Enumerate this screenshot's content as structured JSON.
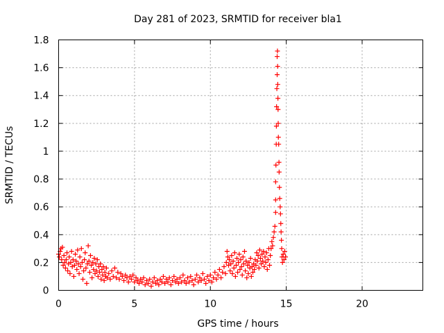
{
  "chart_data": {
    "type": "scatter",
    "title": "Day 281 of 2023, SRMTID for receiver bla1",
    "xlabel": "GPS time / hours",
    "ylabel": "SRMTID / TECUs",
    "xlim": [
      0,
      24
    ],
    "ylim": [
      0,
      1.8
    ],
    "xticks": [
      0,
      5,
      10,
      15,
      20
    ],
    "yticks": [
      0,
      0.2,
      0.4,
      0.6,
      0.8,
      1,
      1.2,
      1.4,
      1.6,
      1.8
    ],
    "xtick_labels": [
      "0",
      "5",
      "10",
      "15",
      "20"
    ],
    "ytick_labels": [
      "0",
      "0.2",
      "0.4",
      "0.6",
      "0.8",
      "1",
      "1.2",
      "1.4",
      "1.6",
      "1.8"
    ],
    "grid": true,
    "marker": "plus",
    "color": "#ff0000",
    "series": [
      {
        "name": "SRMTID",
        "points": [
          [
            0.0,
            0.26
          ],
          [
            0.05,
            0.24
          ],
          [
            0.1,
            0.28
          ],
          [
            0.15,
            0.3
          ],
          [
            0.2,
            0.22
          ],
          [
            0.25,
            0.31
          ],
          [
            0.3,
            0.18
          ],
          [
            0.35,
            0.25
          ],
          [
            0.4,
            0.2
          ],
          [
            0.45,
            0.16
          ],
          [
            0.5,
            0.22
          ],
          [
            0.55,
            0.27
          ],
          [
            0.6,
            0.14
          ],
          [
            0.65,
            0.19
          ],
          [
            0.7,
            0.24
          ],
          [
            0.75,
            0.12
          ],
          [
            0.8,
            0.2
          ],
          [
            0.85,
            0.28
          ],
          [
            0.9,
            0.17
          ],
          [
            0.95,
            0.22
          ],
          [
            1.0,
            0.1
          ],
          [
            1.05,
            0.18
          ],
          [
            1.1,
            0.26
          ],
          [
            1.15,
            0.21
          ],
          [
            1.2,
            0.15
          ],
          [
            1.25,
            0.29
          ],
          [
            1.3,
            0.19
          ],
          [
            1.35,
            0.12
          ],
          [
            1.4,
            0.24
          ],
          [
            1.45,
            0.17
          ],
          [
            1.5,
            0.3
          ],
          [
            1.55,
            0.2
          ],
          [
            1.6,
            0.08
          ],
          [
            1.65,
            0.14
          ],
          [
            1.7,
            0.22
          ],
          [
            1.75,
            0.27
          ],
          [
            1.8,
            0.16
          ],
          [
            1.85,
            0.05
          ],
          [
            1.9,
            0.19
          ],
          [
            1.95,
            0.32
          ],
          [
            2.0,
            0.21
          ],
          [
            2.05,
            0.13
          ],
          [
            2.1,
            0.25
          ],
          [
            2.15,
            0.18
          ],
          [
            2.2,
            0.09
          ],
          [
            2.25,
            0.2
          ],
          [
            2.3,
            0.15
          ],
          [
            2.35,
            0.23
          ],
          [
            2.4,
            0.12
          ],
          [
            2.45,
            0.19
          ],
          [
            2.5,
            0.14
          ],
          [
            2.55,
            0.22
          ],
          [
            2.6,
            0.1
          ],
          [
            2.65,
            0.17
          ],
          [
            2.7,
            0.13
          ],
          [
            2.75,
            0.19
          ],
          [
            2.8,
            0.08
          ],
          [
            2.85,
            0.15
          ],
          [
            2.9,
            0.11
          ],
          [
            2.95,
            0.17
          ],
          [
            3.0,
            0.07
          ],
          [
            3.05,
            0.13
          ],
          [
            3.1,
            0.1
          ],
          [
            3.15,
            0.16
          ],
          [
            3.2,
            0.09
          ],
          [
            3.3,
            0.12
          ],
          [
            3.4,
            0.08
          ],
          [
            3.5,
            0.14
          ],
          [
            3.6,
            0.1
          ],
          [
            3.7,
            0.16
          ],
          [
            3.8,
            0.09
          ],
          [
            3.9,
            0.13
          ],
          [
            4.0,
            0.08
          ],
          [
            4.1,
            0.12
          ],
          [
            4.2,
            0.1
          ],
          [
            4.3,
            0.07
          ],
          [
            4.4,
            0.11
          ],
          [
            4.5,
            0.09
          ],
          [
            4.6,
            0.06
          ],
          [
            4.7,
            0.1
          ],
          [
            4.8,
            0.08
          ],
          [
            4.9,
            0.11
          ],
          [
            5.0,
            0.06
          ],
          [
            5.1,
            0.09
          ],
          [
            5.2,
            0.07
          ],
          [
            5.3,
            0.05
          ],
          [
            5.4,
            0.08
          ],
          [
            5.5,
            0.06
          ],
          [
            5.6,
            0.09
          ],
          [
            5.7,
            0.04
          ],
          [
            5.8,
            0.07
          ],
          [
            5.9,
            0.05
          ],
          [
            6.0,
            0.08
          ],
          [
            6.1,
            0.03
          ],
          [
            6.2,
            0.06
          ],
          [
            6.3,
            0.09
          ],
          [
            6.4,
            0.05
          ],
          [
            6.5,
            0.07
          ],
          [
            6.6,
            0.04
          ],
          [
            6.7,
            0.08
          ],
          [
            6.8,
            0.06
          ],
          [
            6.9,
            0.1
          ],
          [
            7.0,
            0.05
          ],
          [
            7.1,
            0.08
          ],
          [
            7.2,
            0.06
          ],
          [
            7.3,
            0.09
          ],
          [
            7.4,
            0.04
          ],
          [
            7.5,
            0.07
          ],
          [
            7.6,
            0.1
          ],
          [
            7.7,
            0.06
          ],
          [
            7.8,
            0.08
          ],
          [
            7.9,
            0.05
          ],
          [
            8.0,
            0.09
          ],
          [
            8.1,
            0.06
          ],
          [
            8.2,
            0.11
          ],
          [
            8.3,
            0.07
          ],
          [
            8.4,
            0.05
          ],
          [
            8.5,
            0.09
          ],
          [
            8.6,
            0.06
          ],
          [
            8.7,
            0.1
          ],
          [
            8.8,
            0.07
          ],
          [
            8.9,
            0.04
          ],
          [
            9.0,
            0.08
          ],
          [
            9.1,
            0.11
          ],
          [
            9.2,
            0.06
          ],
          [
            9.3,
            0.09
          ],
          [
            9.4,
            0.07
          ],
          [
            9.5,
            0.12
          ],
          [
            9.6,
            0.08
          ],
          [
            9.7,
            0.05
          ],
          [
            9.8,
            0.1
          ],
          [
            9.9,
            0.07
          ],
          [
            10.0,
            0.11
          ],
          [
            10.1,
            0.06
          ],
          [
            10.2,
            0.09
          ],
          [
            10.3,
            0.13
          ],
          [
            10.4,
            0.08
          ],
          [
            10.5,
            0.11
          ],
          [
            10.6,
            0.15
          ],
          [
            10.7,
            0.09
          ],
          [
            10.8,
            0.13
          ],
          [
            10.9,
            0.17
          ],
          [
            11.0,
            0.12
          ],
          [
            11.05,
            0.2
          ],
          [
            11.1,
            0.28
          ],
          [
            11.15,
            0.24
          ],
          [
            11.2,
            0.18
          ],
          [
            11.25,
            0.22
          ],
          [
            11.3,
            0.14
          ],
          [
            11.35,
            0.19
          ],
          [
            11.4,
            0.25
          ],
          [
            11.45,
            0.12
          ],
          [
            11.5,
            0.21
          ],
          [
            11.55,
            0.16
          ],
          [
            11.6,
            0.27
          ],
          [
            11.65,
            0.1
          ],
          [
            11.7,
            0.18
          ],
          [
            11.75,
            0.23
          ],
          [
            11.8,
            0.13
          ],
          [
            11.85,
            0.2
          ],
          [
            11.9,
            0.26
          ],
          [
            11.95,
            0.15
          ],
          [
            12.0,
            0.22
          ],
          [
            12.05,
            0.17
          ],
          [
            12.1,
            0.11
          ],
          [
            12.15,
            0.24
          ],
          [
            12.2,
            0.19
          ],
          [
            12.25,
            0.28
          ],
          [
            12.3,
            0.14
          ],
          [
            12.35,
            0.21
          ],
          [
            12.4,
            0.09
          ],
          [
            12.45,
            0.18
          ],
          [
            12.5,
            0.12
          ],
          [
            12.55,
            0.2
          ],
          [
            12.6,
            0.16
          ],
          [
            12.65,
            0.23
          ],
          [
            12.7,
            0.1
          ],
          [
            12.75,
            0.17
          ],
          [
            12.8,
            0.13
          ],
          [
            12.85,
            0.19
          ],
          [
            12.9,
            0.15
          ],
          [
            12.95,
            0.22
          ],
          [
            13.0,
            0.18
          ],
          [
            13.05,
            0.27
          ],
          [
            13.1,
            0.21
          ],
          [
            13.15,
            0.25
          ],
          [
            13.2,
            0.16
          ],
          [
            13.25,
            0.29
          ],
          [
            13.3,
            0.23
          ],
          [
            13.35,
            0.19
          ],
          [
            13.4,
            0.26
          ],
          [
            13.45,
            0.21
          ],
          [
            13.5,
            0.28
          ],
          [
            13.55,
            0.17
          ],
          [
            13.6,
            0.24
          ],
          [
            13.65,
            0.2
          ],
          [
            13.7,
            0.27
          ],
          [
            13.75,
            0.15
          ],
          [
            13.8,
            0.22
          ],
          [
            13.85,
            0.3
          ],
          [
            13.9,
            0.18
          ],
          [
            13.95,
            0.25
          ],
          [
            14.0,
            0.3
          ],
          [
            14.05,
            0.35
          ],
          [
            14.1,
            0.32
          ],
          [
            14.15,
            0.38
          ],
          [
            14.2,
            0.42
          ],
          [
            14.25,
            0.46
          ],
          [
            14.3,
            0.56
          ],
          [
            14.3,
            0.65
          ],
          [
            14.3,
            0.78
          ],
          [
            14.32,
            0.9
          ],
          [
            14.34,
            1.05
          ],
          [
            14.35,
            1.18
          ],
          [
            14.36,
            1.32
          ],
          [
            14.38,
            1.45
          ],
          [
            14.4,
            1.55
          ],
          [
            14.4,
            1.68
          ],
          [
            14.42,
            1.72
          ],
          [
            14.43,
            1.61
          ],
          [
            14.44,
            1.48
          ],
          [
            14.45,
            1.38
          ],
          [
            14.46,
            1.3
          ],
          [
            14.47,
            1.2
          ],
          [
            14.48,
            1.1
          ],
          [
            14.5,
            1.05
          ],
          [
            14.52,
            0.92
          ],
          [
            14.53,
            0.85
          ],
          [
            14.55,
            0.74
          ],
          [
            14.57,
            0.66
          ],
          [
            14.6,
            0.6
          ],
          [
            14.62,
            0.55
          ],
          [
            14.64,
            0.48
          ],
          [
            14.66,
            0.42
          ],
          [
            14.68,
            0.36
          ],
          [
            14.7,
            0.3
          ],
          [
            14.72,
            0.24
          ],
          [
            14.75,
            0.2
          ],
          [
            14.8,
            0.26
          ],
          [
            14.85,
            0.22
          ],
          [
            14.9,
            0.28
          ],
          [
            14.95,
            0.24
          ]
        ]
      }
    ]
  }
}
